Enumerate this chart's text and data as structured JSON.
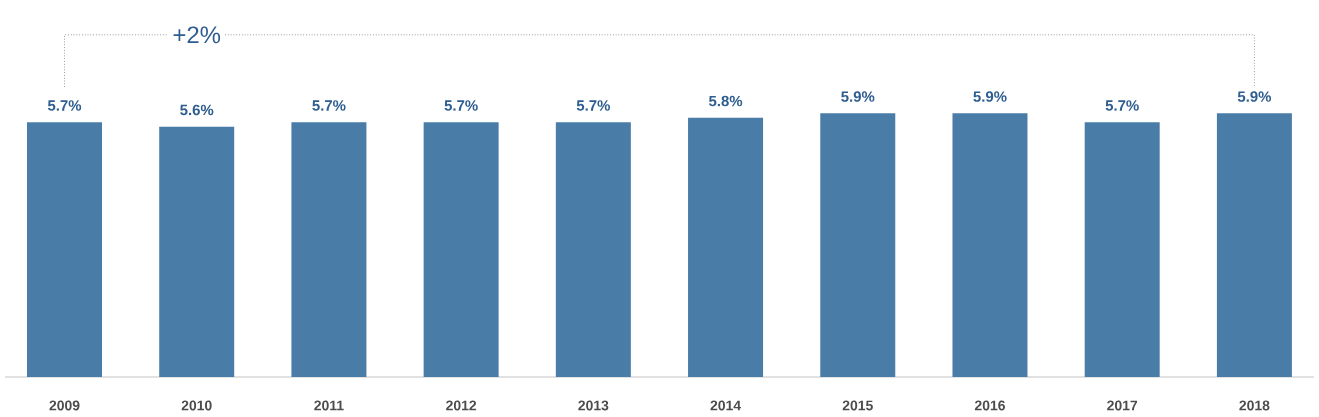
{
  "chart_data": {
    "type": "bar",
    "categories": [
      "2009",
      "2010",
      "2011",
      "2012",
      "2013",
      "2014",
      "2015",
      "2016",
      "2017",
      "2018"
    ],
    "values": [
      5.7,
      5.6,
      5.7,
      5.7,
      5.7,
      5.8,
      5.9,
      5.9,
      5.7,
      5.9
    ],
    "value_labels": [
      "5.7%",
      "5.6%",
      "5.7%",
      "5.7%",
      "5.7%",
      "5.8%",
      "5.9%",
      "5.9%",
      "5.7%",
      "5.9%"
    ],
    "color": "#4a7ca8",
    "tick_labels": "x",
    "grid": false,
    "annotations": [
      "+2%"
    ]
  }
}
